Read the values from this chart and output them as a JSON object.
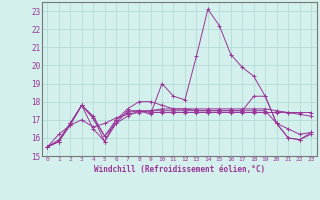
{
  "xlabel": "Windchill (Refroidissement éolien,°C)",
  "xlim": [
    -0.5,
    23.5
  ],
  "ylim": [
    15,
    23.5
  ],
  "yticks": [
    15,
    16,
    17,
    18,
    19,
    20,
    21,
    22,
    23
  ],
  "xticks": [
    0,
    1,
    2,
    3,
    4,
    5,
    6,
    7,
    8,
    9,
    10,
    11,
    12,
    13,
    14,
    15,
    16,
    17,
    18,
    19,
    20,
    21,
    22,
    23
  ],
  "background_color": "#d4f0ec",
  "grid_color": "#aad8d3",
  "line_color": "#993399",
  "series": [
    [
      15.5,
      15.8,
      16.7,
      17.8,
      17.1,
      15.8,
      16.8,
      17.5,
      17.5,
      17.3,
      19.0,
      18.3,
      18.1,
      20.5,
      23.1,
      22.2,
      20.6,
      19.9,
      19.4,
      18.3,
      16.8,
      16.0,
      15.9,
      16.2
    ],
    [
      15.5,
      16.2,
      16.7,
      17.0,
      16.6,
      16.8,
      17.1,
      17.3,
      17.4,
      17.5,
      17.6,
      17.6,
      17.6,
      17.6,
      17.6,
      17.6,
      17.6,
      17.6,
      17.6,
      17.6,
      17.5,
      17.4,
      17.3,
      17.2
    ],
    [
      15.5,
      15.8,
      16.8,
      17.8,
      17.1,
      16.1,
      17.0,
      17.4,
      17.5,
      17.4,
      17.4,
      17.4,
      17.4,
      17.4,
      17.4,
      17.4,
      17.4,
      17.4,
      17.4,
      17.4,
      17.4,
      17.4,
      17.4,
      17.4
    ],
    [
      15.5,
      15.8,
      16.8,
      17.8,
      16.5,
      15.8,
      17.0,
      17.6,
      18.0,
      18.0,
      17.8,
      17.6,
      17.6,
      17.5,
      17.5,
      17.5,
      17.5,
      17.5,
      18.3,
      18.3,
      16.8,
      16.0,
      15.9,
      16.3
    ],
    [
      15.5,
      15.9,
      16.8,
      17.8,
      17.2,
      16.1,
      16.8,
      17.2,
      17.5,
      17.5,
      17.5,
      17.5,
      17.5,
      17.5,
      17.5,
      17.5,
      17.5,
      17.5,
      17.5,
      17.5,
      16.8,
      16.5,
      16.2,
      16.3
    ]
  ]
}
